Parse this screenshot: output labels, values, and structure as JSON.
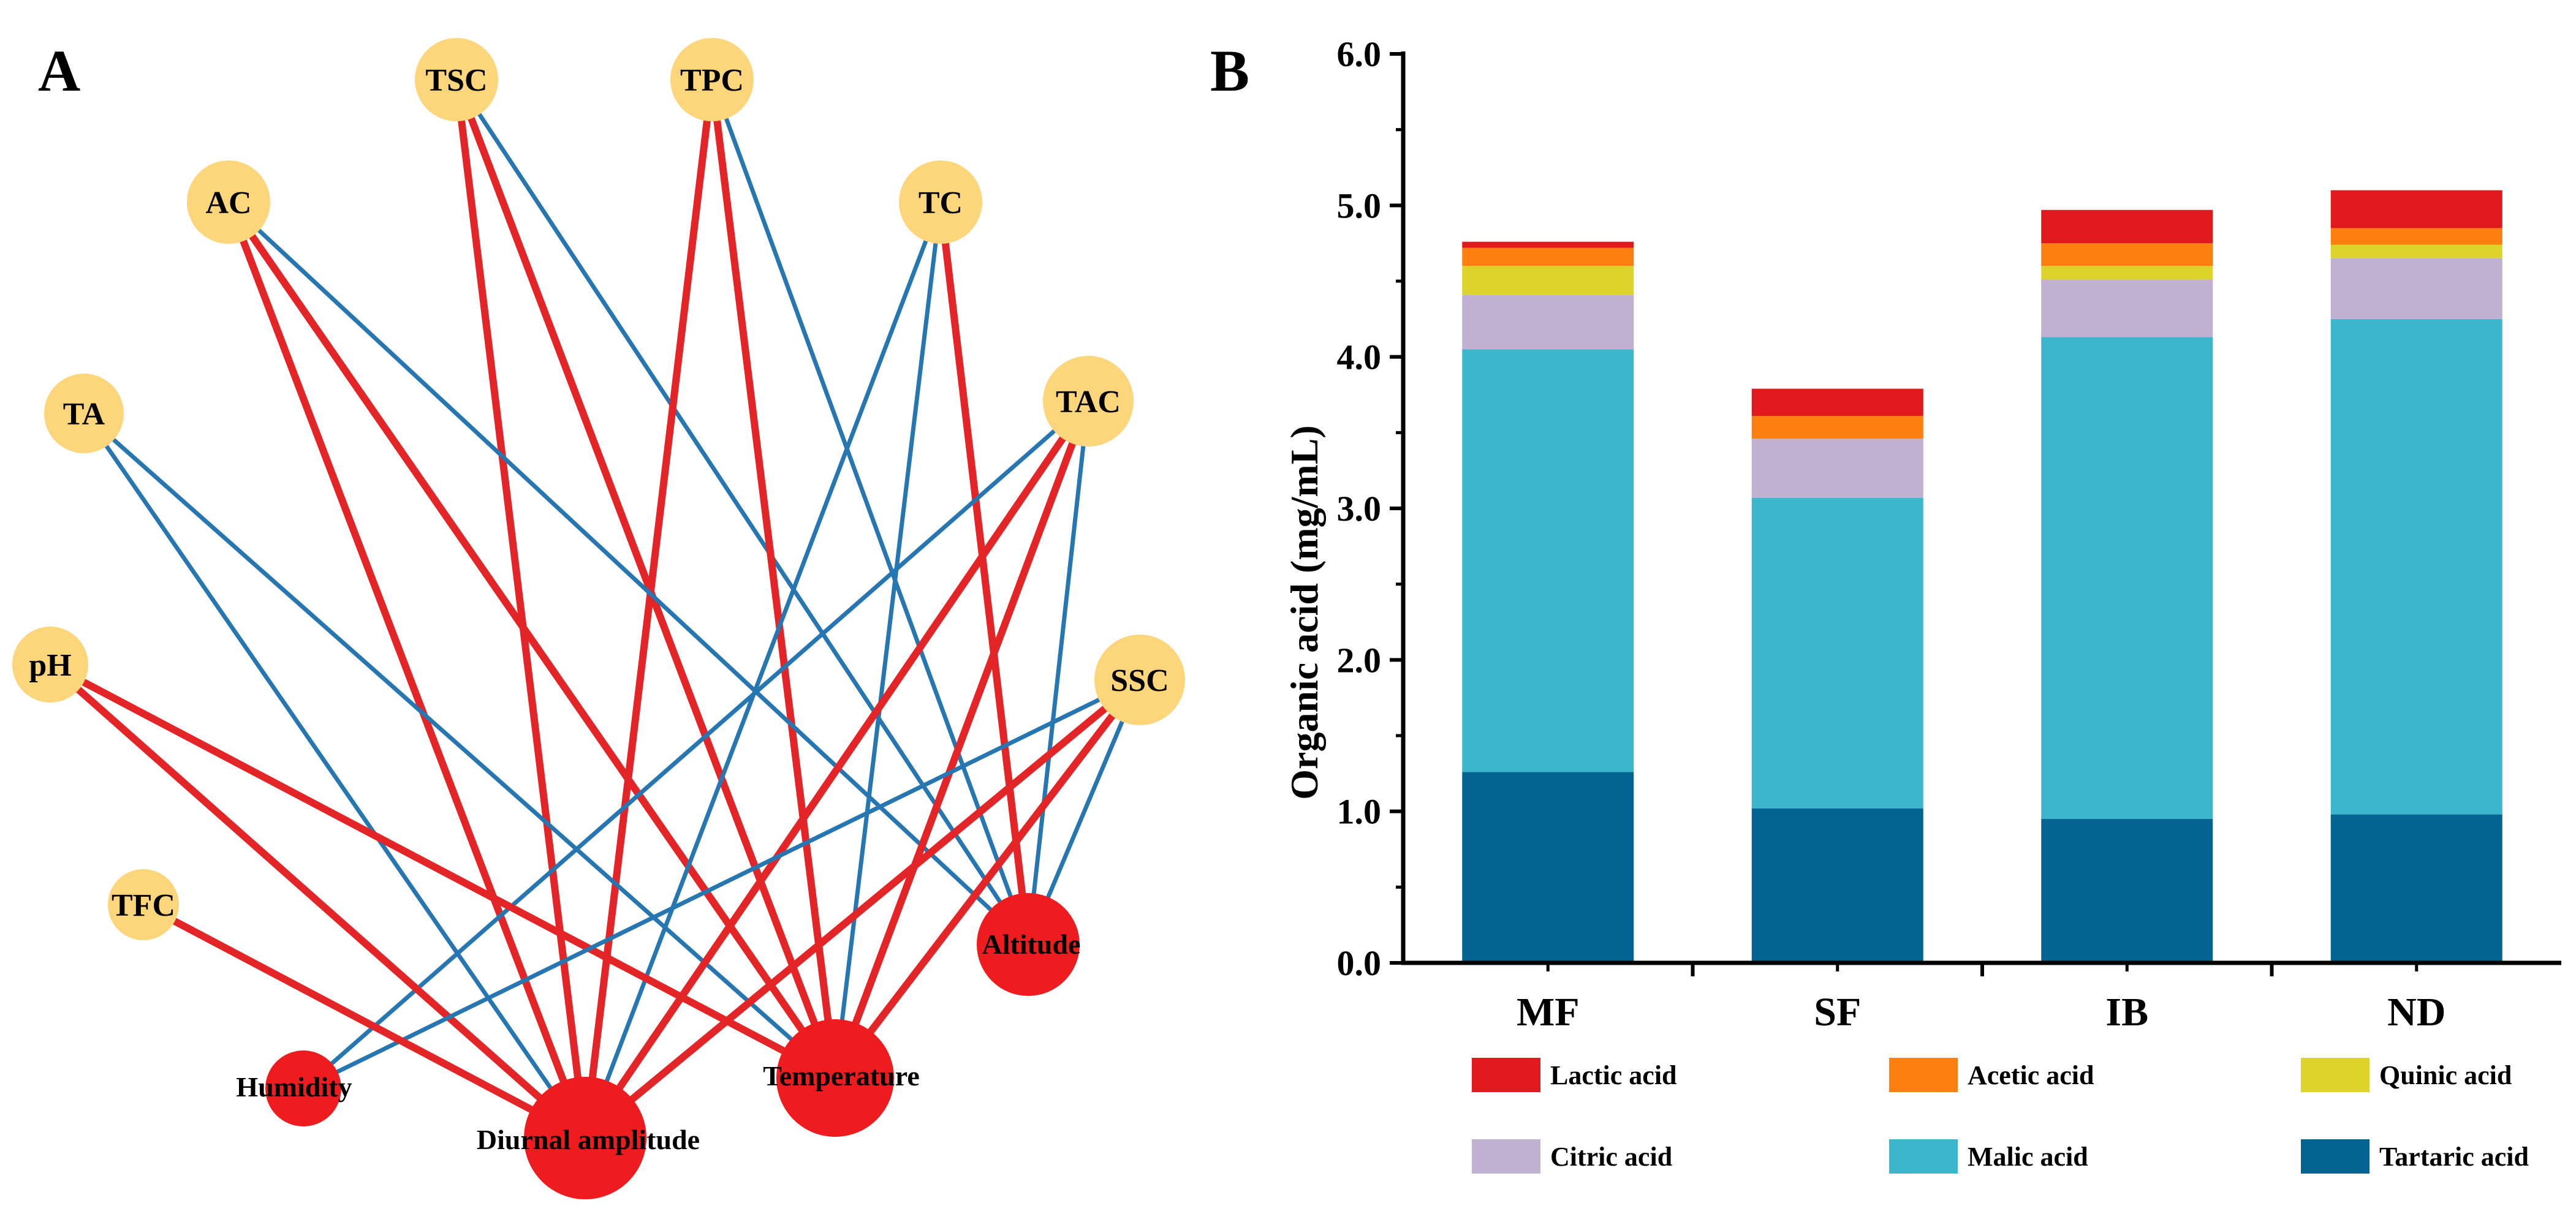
{
  "panels": {
    "a": "A",
    "b": "B"
  },
  "network": {
    "colors": {
      "positive": "#e32527",
      "negative": "#2676b2",
      "indicator_node": "#fdd57a",
      "environment_node": "#ee1c1f"
    },
    "indicators": [
      "TSC",
      "TPC",
      "AC",
      "TC",
      "TA",
      "TAC",
      "pH",
      "SSC",
      "TFC"
    ],
    "environment": [
      "Humidity",
      "Diurnal amplitude",
      "Temperature",
      "Altitude"
    ],
    "edges": [
      {
        "from": "TSC",
        "to": "Diurnal amplitude",
        "sign": "positive"
      },
      {
        "from": "TSC",
        "to": "Temperature",
        "sign": "positive"
      },
      {
        "from": "TSC",
        "to": "Altitude",
        "sign": "negative"
      },
      {
        "from": "TPC",
        "to": "Diurnal amplitude",
        "sign": "positive"
      },
      {
        "from": "TPC",
        "to": "Temperature",
        "sign": "positive"
      },
      {
        "from": "TPC",
        "to": "Altitude",
        "sign": "negative"
      },
      {
        "from": "AC",
        "to": "Diurnal amplitude",
        "sign": "positive"
      },
      {
        "from": "AC",
        "to": "Temperature",
        "sign": "positive"
      },
      {
        "from": "AC",
        "to": "Altitude",
        "sign": "negative"
      },
      {
        "from": "TC",
        "to": "Altitude",
        "sign": "positive"
      },
      {
        "from": "TC",
        "to": "Diurnal amplitude",
        "sign": "negative"
      },
      {
        "from": "TC",
        "to": "Temperature",
        "sign": "negative"
      },
      {
        "from": "TA",
        "to": "Diurnal amplitude",
        "sign": "negative"
      },
      {
        "from": "TA",
        "to": "Temperature",
        "sign": "negative"
      },
      {
        "from": "TAC",
        "to": "Diurnal amplitude",
        "sign": "positive"
      },
      {
        "from": "TAC",
        "to": "Temperature",
        "sign": "positive"
      },
      {
        "from": "TAC",
        "to": "Humidity",
        "sign": "negative"
      },
      {
        "from": "TAC",
        "to": "Altitude",
        "sign": "negative"
      },
      {
        "from": "pH",
        "to": "Diurnal amplitude",
        "sign": "positive"
      },
      {
        "from": "pH",
        "to": "Temperature",
        "sign": "positive"
      },
      {
        "from": "SSC",
        "to": "Diurnal amplitude",
        "sign": "positive"
      },
      {
        "from": "SSC",
        "to": "Temperature",
        "sign": "positive"
      },
      {
        "from": "SSC",
        "to": "Humidity",
        "sign": "negative"
      },
      {
        "from": "SSC",
        "to": "Altitude",
        "sign": "negative"
      },
      {
        "from": "TFC",
        "to": "Diurnal amplitude",
        "sign": "positive"
      }
    ]
  },
  "chart_data": {
    "type": "bar",
    "stacked": true,
    "title": "",
    "xlabel": "",
    "ylabel": "Organic acid (mg/mL)",
    "ylim": [
      0,
      6
    ],
    "yticks": [
      "0.0",
      "1.0",
      "2.0",
      "3.0",
      "4.0",
      "5.0",
      "6.0"
    ],
    "categories": [
      "MF",
      "SF",
      "IB",
      "ND"
    ],
    "series": [
      {
        "name": "Tartaric acid",
        "color": "#036391",
        "values": [
          1.26,
          1.02,
          0.95,
          0.98
        ]
      },
      {
        "name": "Malic acid",
        "color": "#3bb6cd",
        "values": [
          2.79,
          2.05,
          3.18,
          3.27
        ]
      },
      {
        "name": "Citric acid",
        "color": "#c0b0d1",
        "values": [
          0.36,
          0.39,
          0.38,
          0.4
        ]
      },
      {
        "name": "Quinic acid",
        "color": "#ddd32b",
        "values": [
          0.19,
          0.0,
          0.09,
          0.09
        ]
      },
      {
        "name": "Acetic acid",
        "color": "#fd7f0f",
        "values": [
          0.12,
          0.15,
          0.15,
          0.11
        ]
      },
      {
        "name": "Lactic acid",
        "color": "#e0191d",
        "values": [
          0.04,
          0.18,
          0.22,
          0.25
        ]
      }
    ],
    "legend": {
      "order": [
        "Lactic acid",
        "Acetic acid",
        "Quinic acid",
        "Citric acid",
        "Malic acid",
        "Tartaric acid"
      ],
      "placement": "bottom"
    }
  }
}
